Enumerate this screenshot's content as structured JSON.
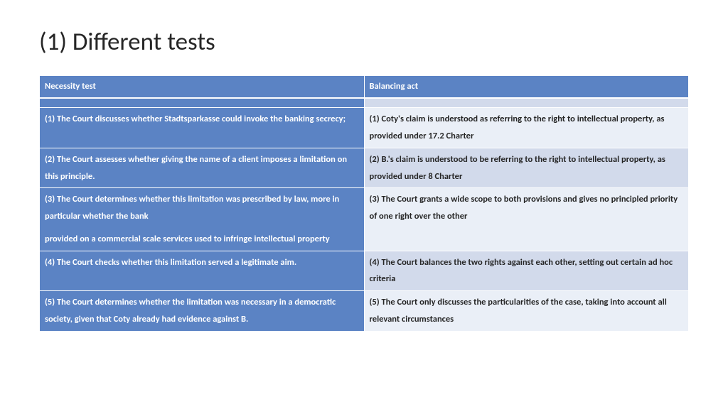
{
  "title": "(1) Different tests",
  "table": {
    "columns": [
      "Necessity test",
      "Balancing act"
    ],
    "header_bg": "#5b83c4",
    "header_color": "#ffffff",
    "left_col_bg": "#5b83c4",
    "left_col_color": "#ffffff",
    "right_alt_bg_light": "#eaeff7",
    "right_alt_bg_med": "#d2daeb",
    "right_col_color": "#262626",
    "border_color": "#ffffff",
    "font_size_pt": 9,
    "font_weight": "bold",
    "rows": [
      {
        "left": " (1) The Court discusses whether Stadtsparkasse could invoke the banking secrecy;",
        "right": "(1) Coty's claim is understood as referring to the right to intellectual property, as provided under 17.2 Charter",
        "right_shade": "light"
      },
      {
        "left": "(2) The Court assesses whether giving the name of a client imposes a limitation on this principle.",
        "right": "(2) B.'s claim is understood to be referring to the right to intellectual property, as provided under 8 Charter",
        "right_shade": "med"
      },
      {
        "left_a": "(3) The Court determines whether this limitation was prescribed by law, more in particular whether the bank",
        "left_b": "provided on a commercial scale services used to infringe intellectual property",
        "right": "(3) The Court grants a wide scope to both provisions and gives no principled priority of one right over the other",
        "right_shade": "light"
      },
      {
        "left": "(4) The Court checks whether this limitation served a legitimate aim.",
        "right": "(4) The Court balances the two rights against each other, setting out certain ad hoc criteria",
        "right_shade": "med"
      },
      {
        "left": "(5) The Court determines whether the limitation was necessary in a democratic society, given that Coty already had evidence against B.",
        "right": "(5) The Court only discusses the particularities of the case, taking into account all relevant circumstances",
        "right_shade": "light"
      }
    ]
  }
}
